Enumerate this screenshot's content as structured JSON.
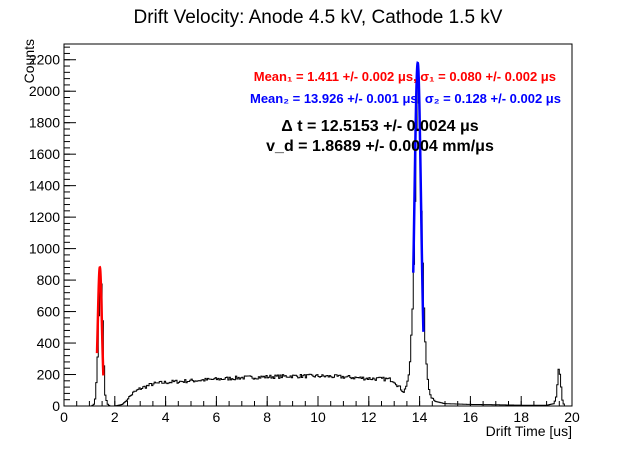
{
  "chart_data": {
    "type": "histogram",
    "title": "Drift Velocity: Anode 4.5 kV, Cathode 1.5 kV",
    "xlabel": "Drift Time [us]",
    "ylabel": "Counts",
    "xlim": [
      0,
      20
    ],
    "ylim": [
      0,
      2300
    ],
    "x_ticks": [
      0,
      2,
      4,
      6,
      8,
      10,
      12,
      14,
      16,
      18,
      20
    ],
    "y_ticks": [
      0,
      200,
      400,
      600,
      800,
      1000,
      1200,
      1400,
      1600,
      1800,
      2000,
      2200
    ],
    "bin_width": 0.05,
    "histogram_points": [
      [
        0.0,
        0
      ],
      [
        1.1,
        0
      ],
      [
        1.2,
        15
      ],
      [
        1.3,
        180
      ],
      [
        1.38,
        600
      ],
      [
        1.44,
        880
      ],
      [
        1.5,
        700
      ],
      [
        1.56,
        320
      ],
      [
        1.62,
        80
      ],
      [
        1.7,
        15
      ],
      [
        1.8,
        0
      ],
      [
        2.0,
        0
      ],
      [
        2.3,
        10
      ],
      [
        2.5,
        40
      ],
      [
        2.7,
        80
      ],
      [
        3.0,
        110
      ],
      [
        3.5,
        140
      ],
      [
        4.0,
        150
      ],
      [
        5.0,
        160
      ],
      [
        6.0,
        170
      ],
      [
        7.0,
        180
      ],
      [
        8.0,
        185
      ],
      [
        9.0,
        190
      ],
      [
        10.0,
        190
      ],
      [
        11.0,
        185
      ],
      [
        12.0,
        175
      ],
      [
        12.8,
        170
      ],
      [
        13.0,
        160
      ],
      [
        13.2,
        120
      ],
      [
        13.4,
        90
      ],
      [
        13.6,
        200
      ],
      [
        13.75,
        700
      ],
      [
        13.85,
        1500
      ],
      [
        13.92,
        2200
      ],
      [
        14.0,
        1800
      ],
      [
        14.1,
        1050
      ],
      [
        14.2,
        480
      ],
      [
        14.3,
        190
      ],
      [
        14.4,
        80
      ],
      [
        14.6,
        30
      ],
      [
        15.0,
        15
      ],
      [
        16.0,
        10
      ],
      [
        17.0,
        8
      ],
      [
        18.0,
        5
      ],
      [
        19.0,
        5
      ],
      [
        19.3,
        15
      ],
      [
        19.4,
        80
      ],
      [
        19.5,
        270
      ],
      [
        19.55,
        150
      ],
      [
        19.62,
        40
      ],
      [
        19.7,
        0
      ]
    ],
    "fits": [
      {
        "color": "#ff0000",
        "mean": 1.411,
        "sigma": 0.08,
        "amplitude": 880,
        "range": [
          1.3,
          1.55
        ]
      },
      {
        "color": "#0000ff",
        "mean": 13.926,
        "sigma": 0.128,
        "amplitude": 2180,
        "range": [
          13.75,
          14.15
        ]
      }
    ],
    "histogram_color": "#000000"
  },
  "annotations": {
    "mean1": "Mean₁ = 1.411 +/- 0.002 μs,  σ₁ = 0.080 +/- 0.002 μs",
    "mean2": "Mean₂ = 13.926 +/- 0.001 μs,  σ₂ = 0.128 +/- 0.002 μs",
    "delta_t": "Δ t = 12.5153 +/- 0.0024 μs",
    "vd": "v_d = 1.8689 +/- 0.0004 mm/μs"
  }
}
